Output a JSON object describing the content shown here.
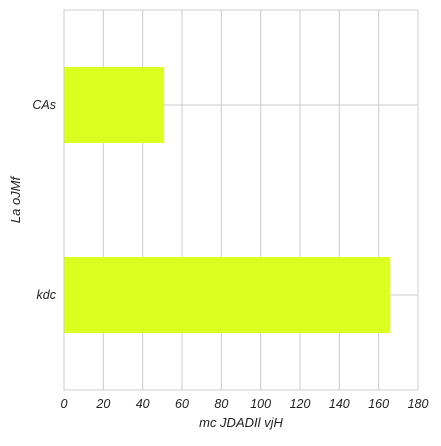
{
  "chart_data": {
    "type": "bar",
    "orientation": "horizontal",
    "categories": [
      "CAs",
      "kdc"
    ],
    "values": [
      51,
      166
    ],
    "xlabel": "mc JDADIl vjH",
    "ylabel": "La oJMf",
    "xlim": [
      0,
      180
    ],
    "xticks": [
      0,
      20,
      40,
      60,
      80,
      100,
      120,
      140,
      160,
      180
    ],
    "grid": true,
    "legend": "none",
    "bar_color": "#dbff1f",
    "grid_color": "#cccccc"
  }
}
